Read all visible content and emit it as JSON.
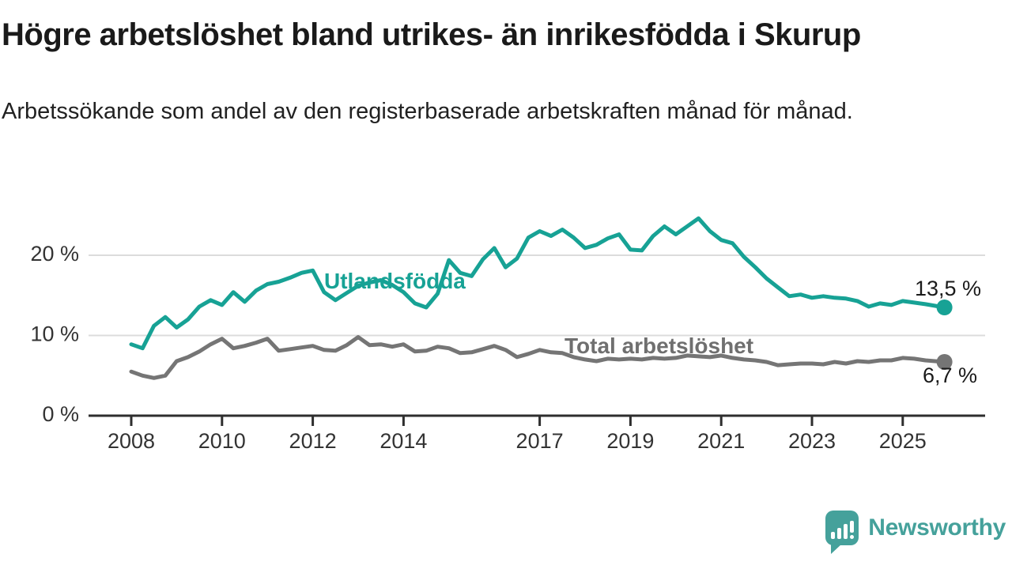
{
  "header": {
    "title": "Högre arbetslöshet bland utrikes- än inrikesfödda i Skurup",
    "subtitle": "Arbetssökande som andel av den registerbaserade arbetskraften månad för månad."
  },
  "logo": {
    "text": "Newsworthy",
    "color": "#45A19B",
    "icon": "bar-chart-speech-bubble-icon"
  },
  "chart_data": {
    "type": "line",
    "title": "Högre arbetslöshet bland utrikes- än inrikesfödda i Skurup",
    "subtitle": "Arbetssökande som andel av den registerbaserade arbetskraften månad för månad.",
    "grid": true,
    "legend_position": "inline-labels",
    "xlim": [
      2007.05,
      2026.8
    ],
    "ylim": [
      0,
      27
    ],
    "gridlines": [
      20,
      10
    ],
    "y_ticks": [
      {
        "value": 20,
        "label": "20 %"
      },
      {
        "value": 10,
        "label": "10 %"
      },
      {
        "value": 0,
        "label": "0 %"
      }
    ],
    "x_ticks": [
      2008,
      2010,
      2012,
      2014,
      2017,
      2019,
      2021,
      2023,
      2025
    ],
    "x": [
      2008.0,
      2008.25,
      2008.5,
      2008.75,
      2009.0,
      2009.25,
      2009.5,
      2009.75,
      2010.0,
      2010.25,
      2010.5,
      2010.75,
      2011.0,
      2011.25,
      2011.5,
      2011.75,
      2012.0,
      2012.25,
      2012.5,
      2012.75,
      2013.0,
      2013.25,
      2013.5,
      2013.75,
      2014.0,
      2014.25,
      2014.5,
      2014.75,
      2015.0,
      2015.25,
      2015.5,
      2015.75,
      2016.0,
      2016.25,
      2016.5,
      2016.75,
      2017.0,
      2017.25,
      2017.5,
      2017.75,
      2018.0,
      2018.25,
      2018.5,
      2018.75,
      2019.0,
      2019.25,
      2019.5,
      2019.75,
      2020.0,
      2020.25,
      2020.5,
      2020.75,
      2021.0,
      2021.25,
      2021.5,
      2021.75,
      2022.0,
      2022.25,
      2022.5,
      2022.75,
      2023.0,
      2023.25,
      2023.5,
      2023.75,
      2024.0,
      2024.25,
      2024.5,
      2024.75,
      2025.0,
      2025.25,
      2025.5,
      2025.92
    ],
    "series": [
      {
        "name": "Utlandsfödda",
        "color": "#17A295",
        "end_label": "13,5 %",
        "end_value": 13.5,
        "values": [
          8.9,
          8.4,
          11.2,
          12.3,
          11.0,
          12.0,
          13.6,
          14.4,
          13.8,
          15.4,
          14.2,
          15.6,
          16.4,
          16.7,
          17.2,
          17.8,
          18.1,
          15.4,
          14.4,
          15.3,
          16.2,
          16.6,
          16.9,
          16.3,
          15.4,
          14.0,
          13.5,
          15.2,
          19.4,
          17.8,
          17.4,
          19.5,
          20.9,
          18.5,
          19.6,
          22.2,
          23.0,
          22.4,
          23.2,
          22.2,
          20.9,
          21.3,
          22.1,
          22.6,
          20.7,
          20.6,
          22.4,
          23.6,
          22.6,
          23.6,
          24.6,
          23.0,
          21.9,
          21.5,
          19.8,
          18.5,
          17.1,
          16.0,
          14.9,
          15.1,
          14.7,
          14.9,
          14.7,
          14.6,
          14.3,
          13.6,
          14.0,
          13.8,
          14.3,
          14.1,
          13.9,
          13.5
        ]
      },
      {
        "name": "Total arbetslöshet",
        "color": "#757575",
        "end_label": "6,7 %",
        "end_value": 6.7,
        "values": [
          5.5,
          5.0,
          4.7,
          5.0,
          6.8,
          7.3,
          8.0,
          8.9,
          9.6,
          8.4,
          8.7,
          9.1,
          9.6,
          8.1,
          8.3,
          8.5,
          8.7,
          8.2,
          8.1,
          8.8,
          9.8,
          8.8,
          8.9,
          8.6,
          8.9,
          8.0,
          8.1,
          8.6,
          8.4,
          7.8,
          7.9,
          8.3,
          8.7,
          8.2,
          7.3,
          7.7,
          8.2,
          7.9,
          7.8,
          7.3,
          7.0,
          6.8,
          7.1,
          7.0,
          7.1,
          7.0,
          7.2,
          7.1,
          7.2,
          7.5,
          7.4,
          7.3,
          7.5,
          7.2,
          7.0,
          6.9,
          6.7,
          6.3,
          6.4,
          6.5,
          6.5,
          6.4,
          6.7,
          6.5,
          6.8,
          6.7,
          6.9,
          6.9,
          7.2,
          7.1,
          6.9,
          6.7
        ]
      }
    ]
  }
}
